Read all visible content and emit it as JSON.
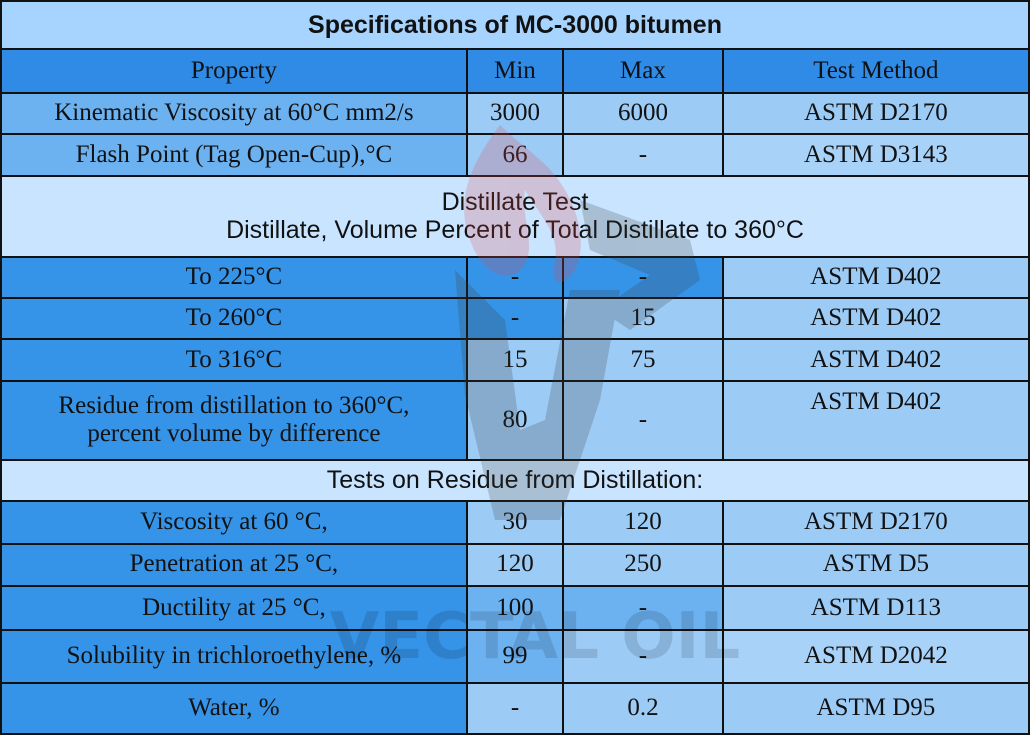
{
  "title": "Specifications of MC-3000 bitumen",
  "headers": {
    "property": "Property",
    "min": "Min",
    "max": "Max",
    "method": "Test Method"
  },
  "rows_top": [
    {
      "property": "Kinematic Viscosity at 60°C mm2/s",
      "min": "3000",
      "max": "6000",
      "method": "ASTM D2170"
    },
    {
      "property": "Flash Point (Tag Open-Cup),°C",
      "min": "66",
      "max": "-",
      "method": "ASTM D3143"
    }
  ],
  "distillate_section": {
    "line1": "Distillate Test",
    "line2": "Distillate, Volume Percent of Total Distillate to 360°C"
  },
  "rows_distillate": [
    {
      "property": "To 225°C",
      "min": "-",
      "max": "-",
      "method": "ASTM D402"
    },
    {
      "property": "To 260°C",
      "min": "-",
      "max": "15",
      "method": "ASTM D402"
    },
    {
      "property": "To 316°C",
      "min": "15",
      "max": "75",
      "method": "ASTM D402"
    }
  ],
  "residue_row": {
    "property_line1": "Residue from distillation to 360°C,",
    "property_line2": "percent volume by difference",
    "min": "80",
    "max": "-",
    "method": "ASTM D402"
  },
  "residue_section": "Tests on Residue from Distillation:",
  "rows_residue": [
    {
      "property": "Viscosity at 60 °C,",
      "min": "30",
      "max": "120",
      "method": "ASTM D2170"
    },
    {
      "property": "Penetration at 25 °C,",
      "min": "120",
      "max": "250",
      "method": "ASTM D5"
    },
    {
      "property": "Ductility at 25 °C,",
      "min": "100",
      "max": "-",
      "method": "ASTM D113"
    },
    {
      "property": "Solubility in trichloroethylene, %",
      "min": "99",
      "max": "-",
      "method": "ASTM D2042"
    },
    {
      "property": "Water, %",
      "min": "-",
      "max": "0.2",
      "method": "ASTM D95"
    }
  ],
  "watermark": {
    "text": "VECTAL OIL"
  },
  "colors": {
    "title_bg": "#a7d3ff",
    "header_bg": "#2f8be6",
    "section_bg": "#c8e4ff",
    "dark_cell": "#3593e8",
    "light_cell": "#9ccbf6",
    "border": "#111111"
  }
}
